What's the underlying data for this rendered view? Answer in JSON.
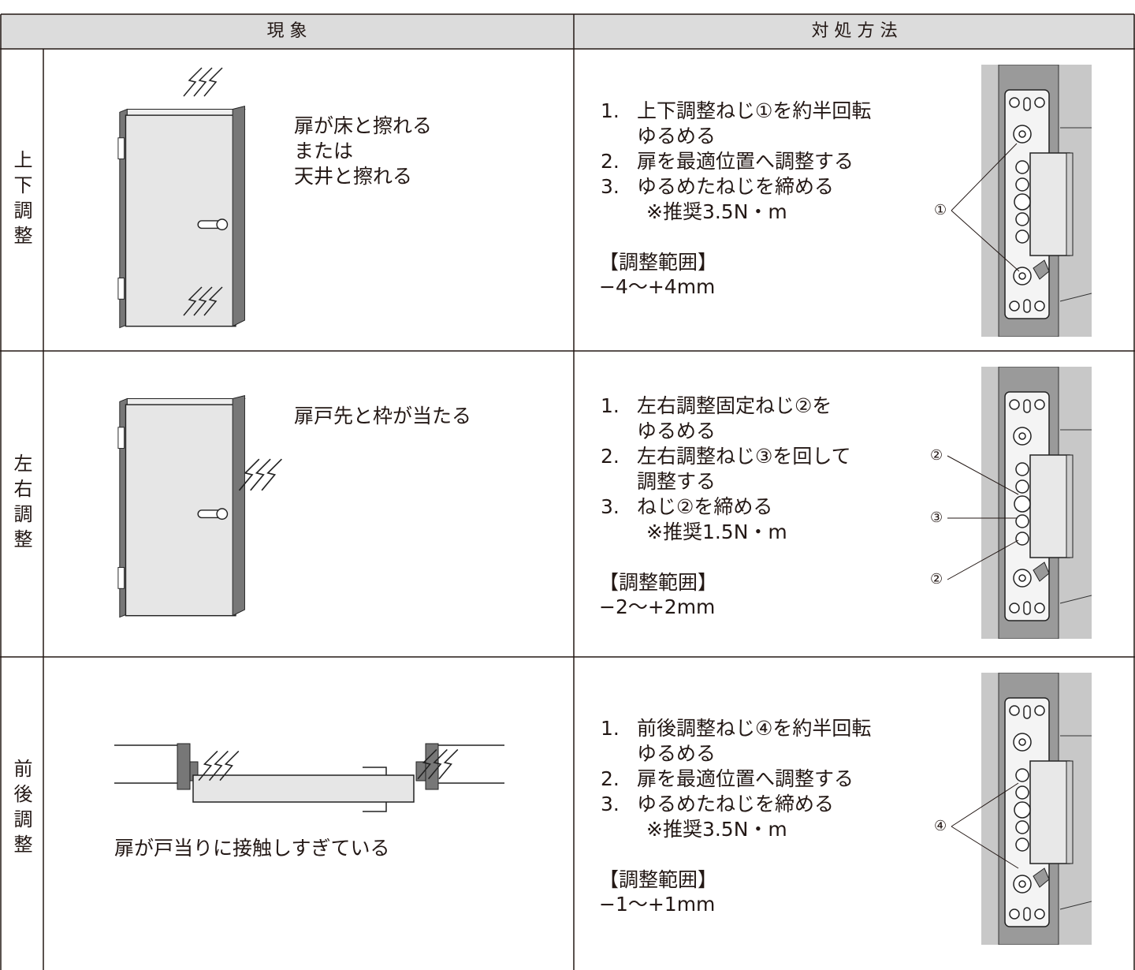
{
  "header": {
    "columns": [
      "現 象",
      "対 処 方 法"
    ]
  },
  "rows": [
    {
      "label": "上下調整",
      "phenomenon": [
        "扉が床と擦れる",
        "または",
        "天井と擦れる"
      ],
      "steps": [
        {
          "num": "1.",
          "lines": [
            "上下調整ねじ①を約半回転",
            "ゆるめる"
          ]
        },
        {
          "num": "2.",
          "lines": [
            "扉を最適位置へ調整する"
          ]
        },
        {
          "num": "3.",
          "lines": [
            "ゆるめたねじを締める"
          ]
        }
      ],
      "note": "※推奨3.5N・m",
      "range_title": "【調整範囲】",
      "range": "−4〜+4mm",
      "callouts": [
        "①"
      ]
    },
    {
      "label": "左右調整",
      "phenomenon": [
        "扉戸先と枠が当たる"
      ],
      "steps": [
        {
          "num": "1.",
          "lines": [
            "左右調整固定ねじ②を",
            "ゆるめる"
          ]
        },
        {
          "num": "2.",
          "lines": [
            "左右調整ねじ③を回して",
            "調整する"
          ]
        },
        {
          "num": "3.",
          "lines": [
            "ねじ②を締める"
          ]
        }
      ],
      "note": "※推奨1.5N・m",
      "range_title": "【調整範囲】",
      "range": "−2〜+2mm",
      "callouts": [
        "②",
        "③",
        "②"
      ]
    },
    {
      "label": "前後調整",
      "phenomenon": [
        "扉が戸当りに接触しすぎている"
      ],
      "steps": [
        {
          "num": "1.",
          "lines": [
            "前後調整ねじ④を約半回転",
            "ゆるめる"
          ]
        },
        {
          "num": "2.",
          "lines": [
            "扉を最適位置へ調整する"
          ]
        },
        {
          "num": "3.",
          "lines": [
            "ゆるめたねじを締める"
          ]
        }
      ],
      "note": "※推奨3.5N・m",
      "range_title": "【調整範囲】",
      "range": "−1〜+1mm",
      "callouts": [
        "④"
      ]
    }
  ]
}
